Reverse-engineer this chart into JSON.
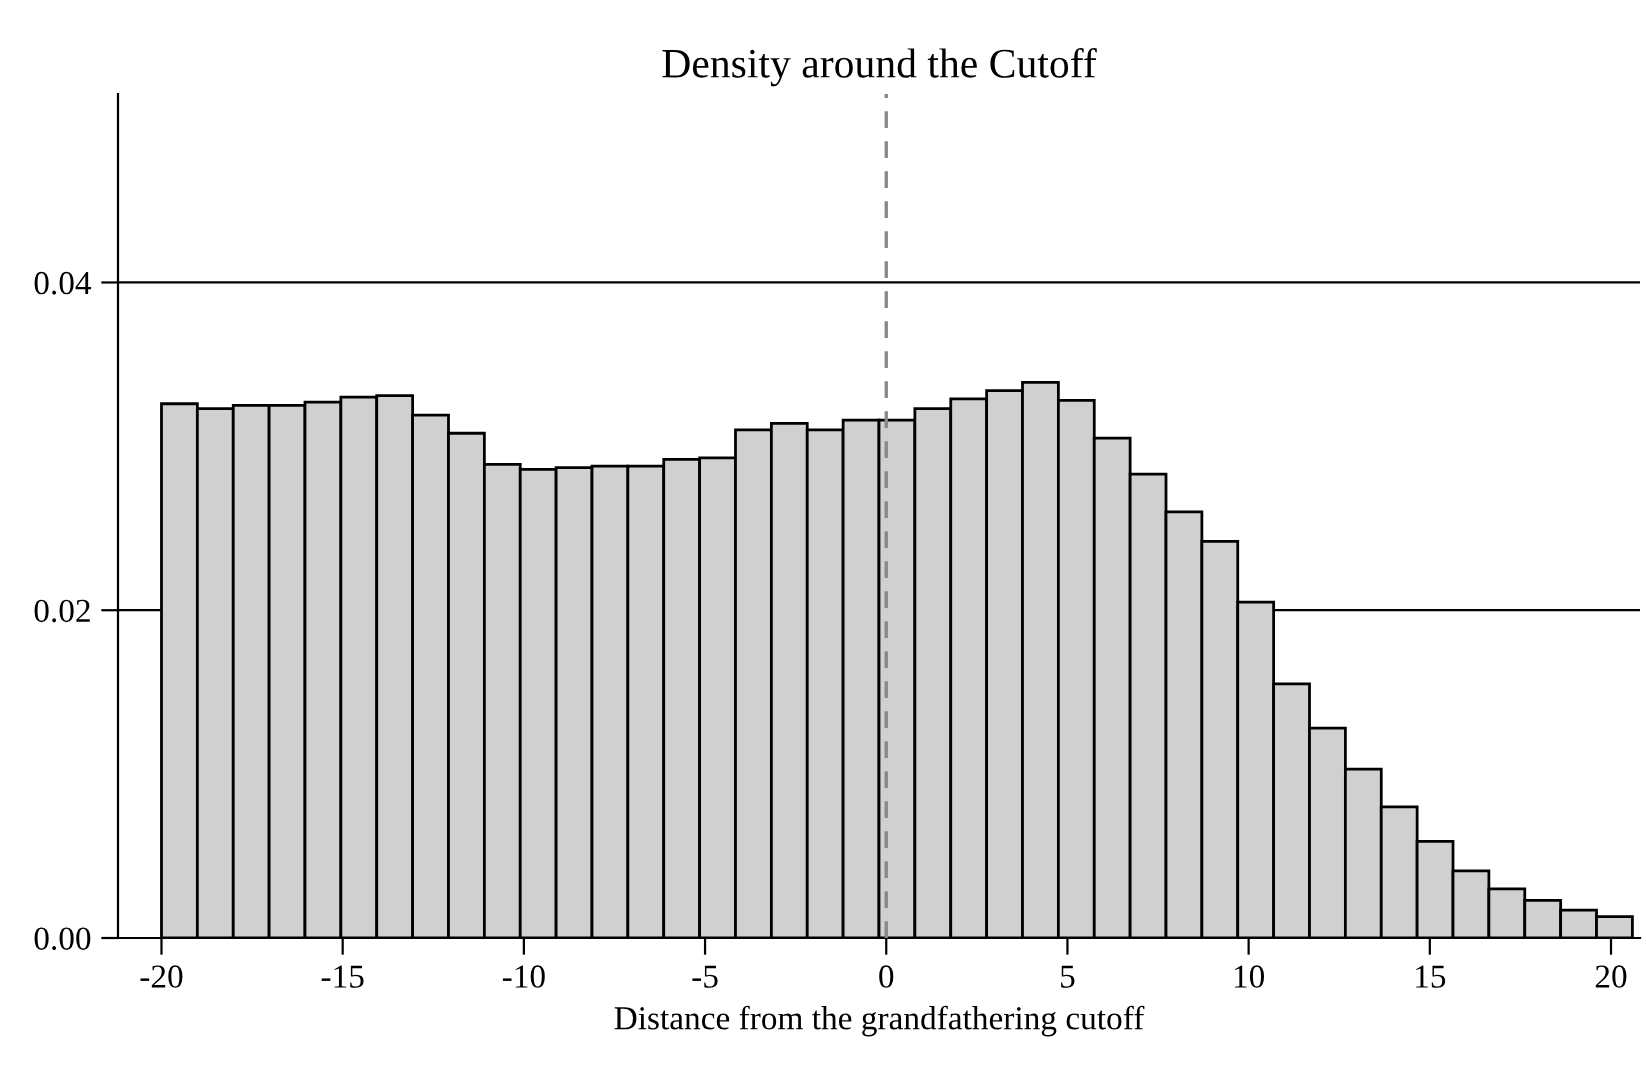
{
  "chart_data": {
    "type": "histogram",
    "title": "Density around the Cutoff",
    "xlabel": "Distance from the grandfathering cutoff",
    "bins": [
      -20,
      -19.01,
      -18.02,
      -17.03,
      -16.04,
      -15.05,
      -14.06,
      -13.07,
      -12.08,
      -11.09,
      -10.1,
      -9.11,
      -8.12,
      -7.13,
      -6.14,
      -5.15,
      -4.16,
      -3.17,
      -2.18,
      -1.19,
      -0.2,
      0.79,
      1.78,
      2.77,
      3.76,
      4.75,
      5.74,
      6.73,
      7.72,
      8.71,
      9.7,
      10.69,
      11.68,
      12.67,
      13.66,
      14.65,
      15.64,
      16.63,
      17.62,
      18.61,
      19.6,
      20.59
    ],
    "values": [
      0.0326,
      0.0323,
      0.0325,
      0.0325,
      0.0327,
      0.033,
      0.0331,
      0.0319,
      0.0308,
      0.0289,
      0.0286,
      0.0287,
      0.0288,
      0.0288,
      0.0292,
      0.0293,
      0.031,
      0.0314,
      0.031,
      0.0316,
      0.0316,
      0.0323,
      0.0329,
      0.0334,
      0.0339,
      0.0328,
      0.0305,
      0.0283,
      0.026,
      0.0242,
      0.0205,
      0.0155,
      0.0128,
      0.0103,
      0.008,
      0.0059,
      0.0041,
      0.003,
      0.0023,
      0.0017,
      0.0013
    ],
    "color": "#d0d0d0",
    "xlim": [
      -21.2,
      20.8
    ],
    "xticks": [
      -20,
      -15,
      -10,
      -5,
      0,
      5,
      10,
      15,
      20
    ],
    "ylim": [
      0,
      0.0515
    ],
    "yticks": [
      {
        "value": 0,
        "label": "0.00"
      },
      {
        "value": 0.02,
        "label": "0.02"
      },
      {
        "value": 0.04,
        "label": "0.04"
      }
    ],
    "grid": "y",
    "ref_lines": [
      {
        "axis": "x",
        "value": 0,
        "color": "#888888",
        "line_style": "dashed"
      }
    ]
  }
}
